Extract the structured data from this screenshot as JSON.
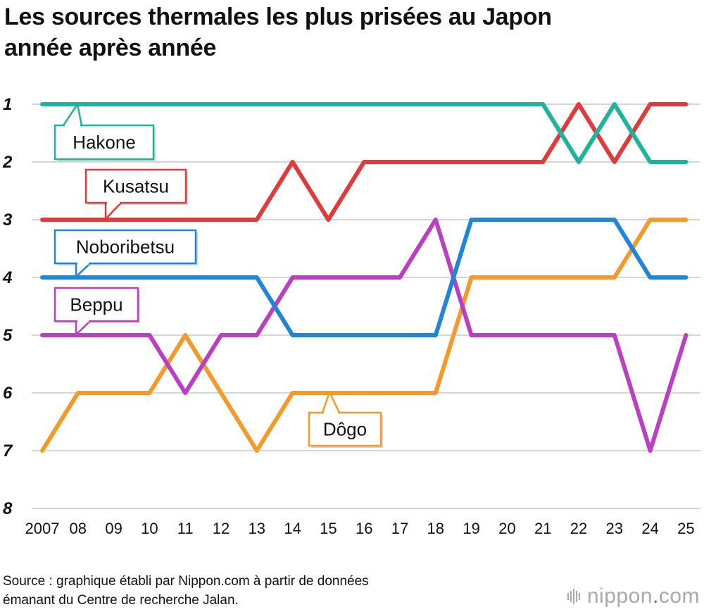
{
  "title_lines": [
    "Les sources thermales les plus prisées au Japon",
    "année après année"
  ],
  "source_lines": [
    "Source : graphique établi par Nippon.com à partir de données",
    "émanant du Centre de recherche Jalan."
  ],
  "logo": {
    "main": "nippon",
    "dot": ".",
    "suffix": "com",
    "dot_color": "#e03a3a"
  },
  "chart_data": {
    "type": "line",
    "title": "Les sources thermales les plus prisées au Japon année après année",
    "xlabel": "",
    "ylabel": "",
    "x": [
      "2007",
      "08",
      "09",
      "10",
      "11",
      "12",
      "13",
      "14",
      "15",
      "16",
      "17",
      "18",
      "19",
      "20",
      "21",
      "22",
      "23",
      "24",
      "25"
    ],
    "y_ticks": [
      "1",
      "2",
      "3",
      "4",
      "5",
      "6",
      "7",
      "8"
    ],
    "ylim": [
      1,
      8
    ],
    "y_inverted": true,
    "grid": true,
    "series": [
      {
        "name": "Hakone",
        "color": "#20b39c",
        "values": [
          1,
          1,
          1,
          1,
          1,
          1,
          1,
          1,
          1,
          1,
          1,
          1,
          1,
          1,
          1,
          2,
          1,
          2,
          2
        ]
      },
      {
        "name": "Kusatsu",
        "color": "#e03a3a",
        "values": [
          3,
          3,
          3,
          3,
          3,
          3,
          3,
          2,
          3,
          2,
          2,
          2,
          2,
          2,
          2,
          1,
          2,
          1,
          1
        ]
      },
      {
        "name": "Noboribetsu",
        "color": "#1f85d9",
        "values": [
          4,
          4,
          4,
          4,
          4,
          4,
          4,
          5,
          5,
          5,
          5,
          5,
          3,
          3,
          3,
          3,
          3,
          4,
          4
        ]
      },
      {
        "name": "Beppu",
        "color": "#bb3fc2",
        "values": [
          5,
          5,
          5,
          5,
          6,
          5,
          5,
          4,
          4,
          4,
          4,
          3,
          5,
          5,
          5,
          5,
          5,
          7,
          5
        ]
      },
      {
        "name": "Dôgo",
        "color": "#f39a2a",
        "values": [
          7,
          6,
          6,
          6,
          5,
          6,
          7,
          6,
          6,
          6,
          6,
          6,
          4,
          4,
          4,
          4,
          4,
          3,
          3
        ]
      }
    ]
  }
}
